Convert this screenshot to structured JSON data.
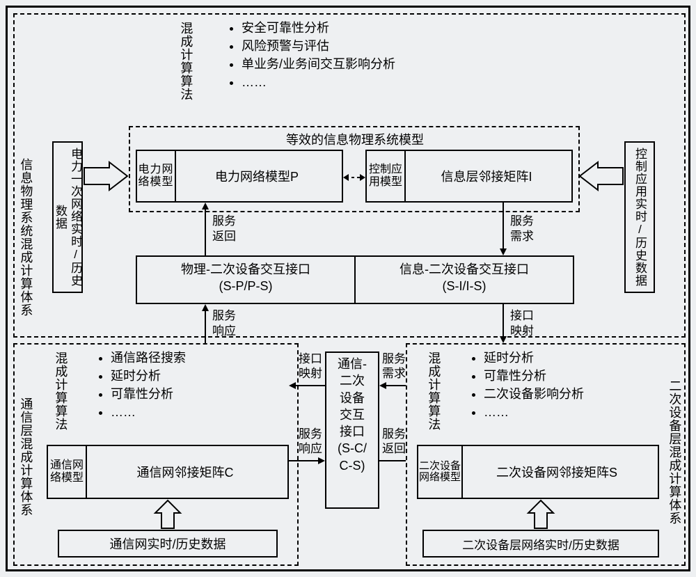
{
  "regions": {
    "top": {
      "title_label": "信息物理系统混成计算体系"
    },
    "bl": {
      "title_label": "通信层混成计算体系"
    },
    "br": {
      "title_label": "二次设备层混成计算体系"
    }
  },
  "top": {
    "algo_header": "混成计算算法",
    "algo_items": [
      "安全可靠性分析",
      "风险预警与评估",
      "单业务/业务间交互影响分析",
      "……"
    ],
    "equiv_title": "等效的信息物理系统模型",
    "left_data_box": "电力一次网络实时/历史数据",
    "right_data_box": "控制应用实时/历史数据",
    "p_small_label": "电力网络模型",
    "p_box": "电力网络模型P",
    "i_small_label": "控制应用模型",
    "i_box": "信息层邻接矩阵I",
    "sp_box": "物理-二次设备交互接口",
    "sp_sub": "(S-P/P-S)",
    "si_box": "信息-二次设备交互接口",
    "si_sub": "(S-I/I-S)",
    "lbl_serv_return": "服务返回",
    "lbl_serv_demand": "服务需求",
    "lbl_serv_resp": "服务响应",
    "lbl_intf_map": "接口映射"
  },
  "bl": {
    "algo_header": "混成计算算法",
    "algo_items": [
      "通信路径搜索",
      "延时分析",
      "可靠性分析",
      "……"
    ],
    "small_label": "通信网络模型",
    "c_box": "通信网邻接矩阵C",
    "bottom_data": "通信网实时/历史数据"
  },
  "mid": {
    "cs_box_l1": "通信-",
    "cs_box_l2": "二次",
    "cs_box_l3": "设备",
    "cs_box_l4": "交互",
    "cs_box_l5": "接口",
    "cs_box_l6": "(S-C/",
    "cs_box_l7": "C-S)",
    "lbl_left_top": "接口映射",
    "lbl_left_bot": "服务响应",
    "lbl_right_top": "服务需求",
    "lbl_right_bot": "服务返回"
  },
  "br": {
    "algo_header": "混成计算算法",
    "algo_items": [
      "延时分析",
      "可靠性分析",
      "二次设备影响分析",
      "……"
    ],
    "small_label": "二次设备网络模型",
    "s_box": "二次设备网邻接矩阵S",
    "bottom_data": "二次设备层网络实时/历史数据"
  },
  "style": {
    "bg": "#eef0f2",
    "line": "#000000",
    "font_main": 17,
    "font_small": 16
  }
}
